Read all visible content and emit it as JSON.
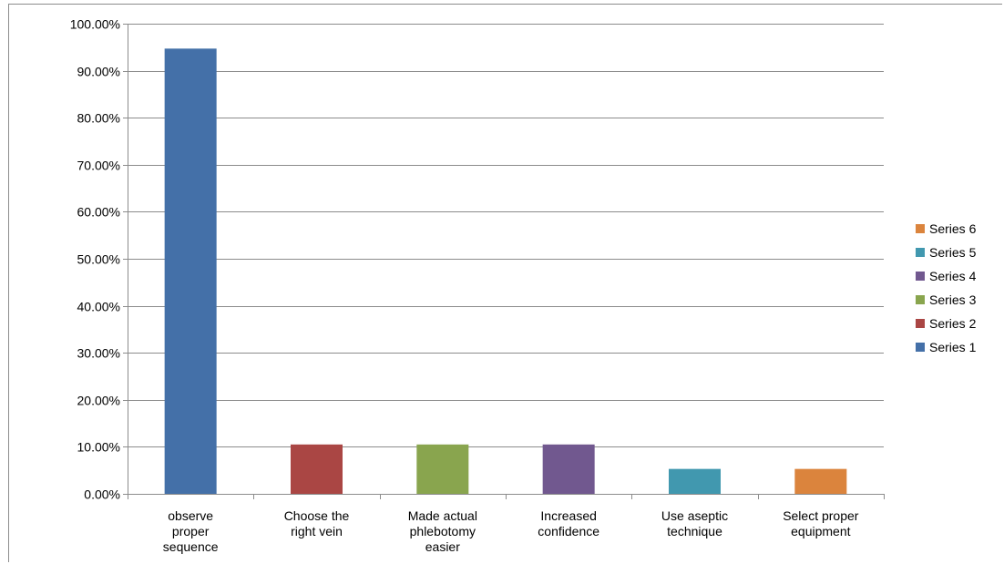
{
  "chart_data": {
    "type": "bar",
    "categories": [
      [
        "observe",
        "proper",
        "sequence"
      ],
      [
        "Choose the",
        "right vein"
      ],
      [
        "Made actual",
        "phlebotomy",
        "easier"
      ],
      [
        "Increased",
        "confidence"
      ],
      [
        "Use aseptic",
        "technique"
      ],
      [
        "Select proper",
        "equipment"
      ]
    ],
    "series": [
      {
        "name": "Series 1",
        "values": [
          0.947,
          null,
          null,
          null,
          null,
          null
        ],
        "color": "#4470a8"
      },
      {
        "name": "Series 2",
        "values": [
          null,
          0.105,
          null,
          null,
          null,
          null
        ],
        "color": "#aa4644"
      },
      {
        "name": "Series 3",
        "values": [
          null,
          null,
          0.105,
          null,
          null,
          null
        ],
        "color": "#89a54e"
      },
      {
        "name": "Series 4",
        "values": [
          null,
          null,
          null,
          0.105,
          null,
          null
        ],
        "color": "#71588f"
      },
      {
        "name": "Series 5",
        "values": [
          null,
          null,
          null,
          null,
          0.053,
          null
        ],
        "color": "#4198af"
      },
      {
        "name": "Series 6",
        "values": [
          null,
          null,
          null,
          null,
          null,
          0.053
        ],
        "color": "#db843d"
      }
    ],
    "yticks": [
      "0.00%",
      "10.00%",
      "20.00%",
      "30.00%",
      "40.00%",
      "50.00%",
      "60.00%",
      "70.00%",
      "80.00%",
      "90.00%",
      "100.00%"
    ],
    "ylim": [
      0,
      1
    ],
    "grid": true,
    "legend_position": "right",
    "legend_order": [
      "Series 6",
      "Series 5",
      "Series 4",
      "Series 3",
      "Series 2",
      "Series 1"
    ],
    "title": "",
    "xlabel": "",
    "ylabel": ""
  }
}
